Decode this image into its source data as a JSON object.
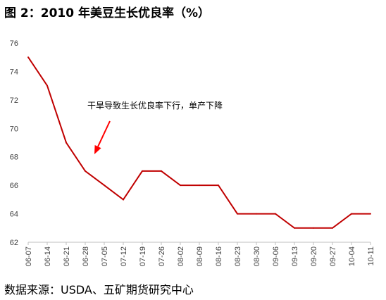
{
  "figure": {
    "title": "图 2：2010 年美豆生长优良率（%）",
    "source": "数据来源：USDA、五矿期货研究中心"
  },
  "chart_data": {
    "type": "line",
    "title": "2010 年美豆生长优良率（%）",
    "xlabel": "",
    "ylabel": "",
    "x": [
      "06-07",
      "06-14",
      "06-21",
      "06-28",
      "07-05",
      "07-12",
      "07-19",
      "07-26",
      "08-02",
      "08-09",
      "08-16",
      "08-23",
      "08-30",
      "09-06",
      "09-13",
      "09-20",
      "09-27",
      "10-04",
      "10-11"
    ],
    "series": [
      {
        "values": [
          75,
          73,
          69,
          67,
          66,
          65,
          67,
          67,
          66,
          66,
          66,
          64,
          64,
          64,
          63,
          63,
          63,
          64,
          64
        ],
        "color": "#c00000"
      }
    ],
    "ylim": [
      62,
      76
    ],
    "yticks": [
      62,
      64,
      66,
      68,
      70,
      72,
      74,
      76
    ],
    "grid": false,
    "legend": "none",
    "annotation": {
      "text": "干旱导致生长优良率下行，单产下降",
      "arrow_color": "#ff0000"
    }
  }
}
